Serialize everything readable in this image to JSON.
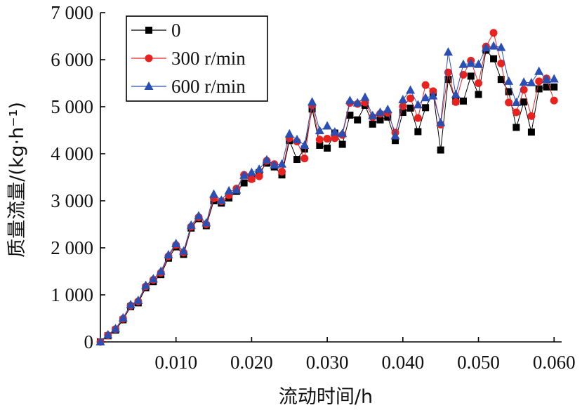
{
  "chart_data": {
    "type": "line",
    "title": "",
    "xlabel": "流动时间/h",
    "ylabel": "质量流量/(kg·h⁻¹)",
    "xlim": [
      0,
      0.061
    ],
    "ylim": [
      0,
      7000
    ],
    "x_ticks": [
      0.01,
      0.02,
      0.03,
      0.04,
      0.05,
      0.06
    ],
    "x_tick_labels": [
      "0.010",
      "0.020",
      "0.030",
      "0.040",
      "0.050",
      "0.060"
    ],
    "y_ticks": [
      0,
      1000,
      2000,
      3000,
      4000,
      5000,
      6000,
      7000
    ],
    "y_tick_labels": [
      "0",
      "1 000",
      "2 000",
      "3 000",
      "4 000",
      "5 000",
      "6 000",
      "7 000"
    ],
    "grid": false,
    "legend": "top-left",
    "x": [
      0.0,
      0.001,
      0.002,
      0.003,
      0.004,
      0.005,
      0.006,
      0.007,
      0.008,
      0.009,
      0.01,
      0.011,
      0.012,
      0.013,
      0.014,
      0.015,
      0.016,
      0.017,
      0.018,
      0.019,
      0.02,
      0.021,
      0.022,
      0.023,
      0.024,
      0.025,
      0.026,
      0.027,
      0.028,
      0.029,
      0.03,
      0.031,
      0.032,
      0.033,
      0.034,
      0.035,
      0.036,
      0.037,
      0.038,
      0.039,
      0.04,
      0.041,
      0.042,
      0.043,
      0.044,
      0.045,
      0.046,
      0.047,
      0.048,
      0.049,
      0.05,
      0.051,
      0.052,
      0.053,
      0.054,
      0.055,
      0.056,
      0.057,
      0.058,
      0.059,
      0.06
    ],
    "series": [
      {
        "name": "0",
        "color": "#000000",
        "marker": "square",
        "values": [
          0,
          130,
          250,
          470,
          750,
          830,
          1150,
          1280,
          1430,
          1780,
          2020,
          1860,
          2420,
          2620,
          2470,
          3000,
          2950,
          3060,
          3200,
          3380,
          3480,
          3600,
          3800,
          3720,
          3550,
          4280,
          3880,
          4100,
          4950,
          4180,
          4120,
          4440,
          4200,
          4820,
          4720,
          5030,
          4630,
          4720,
          4780,
          4280,
          4880,
          4970,
          4470,
          4980,
          5300,
          4080,
          5580,
          5120,
          5120,
          5650,
          5260,
          6200,
          6020,
          5580,
          5320,
          4560,
          5100,
          4460,
          5380,
          5420,
          5420
        ]
      },
      {
        "name": "300 r/min",
        "color": "#e8231f",
        "marker": "circle",
        "values": [
          0,
          140,
          270,
          490,
          770,
          860,
          1180,
          1320,
          1470,
          1820,
          2060,
          1900,
          2450,
          2650,
          2500,
          3050,
          2990,
          3120,
          3260,
          3550,
          3460,
          3520,
          3850,
          3780,
          3620,
          4330,
          4260,
          3900,
          5030,
          4300,
          4320,
          4330,
          4400,
          5080,
          5060,
          5090,
          4780,
          4850,
          4870,
          4450,
          5010,
          5180,
          4760,
          5460,
          5330,
          4620,
          5730,
          5100,
          5680,
          5980,
          5500,
          6280,
          6570,
          5920,
          5090,
          4880,
          5360,
          4800,
          5540,
          5600,
          5130
        ]
      },
      {
        "name": "600 r/min",
        "color": "#2a4fb4",
        "marker": "triangle",
        "values": [
          0,
          150,
          280,
          510,
          790,
          880,
          1200,
          1340,
          1500,
          1850,
          2090,
          1930,
          2480,
          2680,
          2530,
          3140,
          3010,
          3210,
          3230,
          3540,
          3600,
          3670,
          3870,
          3760,
          3780,
          4420,
          4300,
          4180,
          5100,
          4490,
          4590,
          4460,
          4430,
          5130,
          5080,
          5200,
          4810,
          4880,
          4940,
          4380,
          5150,
          5350,
          5040,
          5190,
          5230,
          4660,
          6160,
          5260,
          5900,
          5920,
          5900,
          6250,
          6290,
          6260,
          5540,
          5090,
          5520,
          5510,
          5750,
          5580,
          5590
        ]
      }
    ]
  }
}
